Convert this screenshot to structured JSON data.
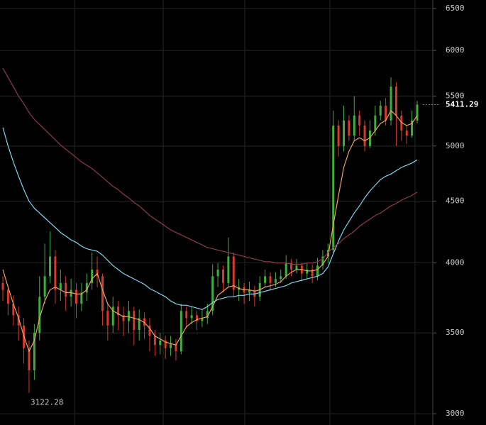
{
  "chart_data": {
    "type": "candlestick",
    "log_scale": true,
    "grid": true,
    "ylim": [
      2936,
      6607
    ],
    "yticks": [
      3000,
      3500,
      4000,
      4500,
      5000,
      5500,
      6000,
      6500
    ],
    "up_color": "#3fae3f",
    "down_color": "#d63a2f",
    "open": [
      3850,
      3800,
      3700,
      3620,
      3550,
      3400,
      3260,
      3500,
      3750,
      3900,
      4050,
      3800,
      3850,
      3750,
      3800,
      3700,
      3780,
      3850,
      3950,
      3900,
      3650,
      3550,
      3680,
      3620,
      3580,
      3650,
      3520,
      3600,
      3550,
      3480,
      3420,
      3450,
      3400,
      3430,
      3380,
      3650,
      3600,
      3620,
      3580,
      3600,
      3650,
      3900,
      3950,
      3850,
      4050,
      3800,
      3820,
      3780,
      3800,
      3750,
      3850,
      3900,
      3850,
      3880,
      3900,
      4000,
      3950,
      3980,
      3920,
      3950,
      3900,
      3980,
      4050,
      4100,
      5200,
      5000,
      5250,
      5100,
      5300,
      5200,
      5000,
      5150,
      5300,
      5400,
      5250,
      5600,
      5300,
      5150,
      5100,
      5250
    ],
    "high": [
      3900,
      3830,
      3760,
      3680,
      3600,
      3450,
      3560,
      3900,
      4150,
      4250,
      4100,
      3950,
      3900,
      3880,
      3850,
      3850,
      3920,
      4080,
      4050,
      3920,
      3700,
      3750,
      3720,
      3680,
      3720,
      3680,
      3660,
      3640,
      3600,
      3520,
      3500,
      3480,
      3480,
      3460,
      3700,
      3680,
      3680,
      3650,
      3660,
      3700,
      3990,
      4000,
      3980,
      4200,
      4080,
      3880,
      3850,
      3860,
      3830,
      3900,
      3950,
      3930,
      3930,
      3950,
      4060,
      4030,
      4030,
      4000,
      4000,
      3990,
      4040,
      4100,
      4150,
      5350,
      5250,
      5400,
      5300,
      5500,
      5350,
      5250,
      5250,
      5400,
      5450,
      5480,
      5700,
      5650,
      5350,
      5200,
      5350,
      5450
    ],
    "low": [
      3720,
      3620,
      3550,
      3450,
      3300,
      3122.28,
      3200,
      3450,
      3700,
      3850,
      3700,
      3720,
      3650,
      3680,
      3600,
      3650,
      3720,
      3800,
      3820,
      3550,
      3450,
      3500,
      3520,
      3480,
      3500,
      3420,
      3450,
      3460,
      3380,
      3350,
      3360,
      3330,
      3350,
      3320,
      3360,
      3540,
      3560,
      3520,
      3540,
      3560,
      3620,
      3820,
      3780,
      3820,
      3750,
      3720,
      3700,
      3720,
      3680,
      3720,
      3820,
      3800,
      3820,
      3850,
      3880,
      3900,
      3920,
      3860,
      3880,
      3850,
      3870,
      3950,
      4000,
      4080,
      4900,
      4950,
      5050,
      5050,
      5100,
      4950,
      4980,
      5100,
      5250,
      5200,
      5200,
      5000,
      5050,
      5020,
      5080,
      5220
    ],
    "close": [
      3800,
      3700,
      3620,
      3550,
      3400,
      3260,
      3500,
      3750,
      3900,
      4050,
      3800,
      3850,
      3750,
      3800,
      3700,
      3780,
      3850,
      3950,
      3900,
      3650,
      3550,
      3680,
      3620,
      3580,
      3650,
      3520,
      3600,
      3550,
      3480,
      3420,
      3450,
      3400,
      3430,
      3380,
      3650,
      3600,
      3620,
      3580,
      3600,
      3650,
      3900,
      3950,
      3850,
      4050,
      3800,
      3820,
      3780,
      3800,
      3750,
      3850,
      3900,
      3850,
      3880,
      3900,
      4000,
      3950,
      3980,
      3920,
      3950,
      3900,
      3980,
      4050,
      4100,
      5200,
      5000,
      5250,
      5100,
      5300,
      5200,
      5000,
      5150,
      5300,
      5400,
      5250,
      5600,
      5300,
      5150,
      5100,
      5250,
      5411.29
    ],
    "moving_averages": [
      {
        "color": "#e9a45a",
        "values": [
          3950,
          3820,
          3700,
          3600,
          3480,
          3380,
          3450,
          3600,
          3720,
          3800,
          3820,
          3800,
          3780,
          3780,
          3770,
          3770,
          3800,
          3880,
          3920,
          3800,
          3700,
          3650,
          3630,
          3610,
          3610,
          3600,
          3590,
          3570,
          3530,
          3480,
          3460,
          3440,
          3430,
          3420,
          3480,
          3540,
          3570,
          3590,
          3600,
          3610,
          3680,
          3760,
          3790,
          3820,
          3830,
          3810,
          3800,
          3800,
          3790,
          3800,
          3820,
          3830,
          3840,
          3860,
          3900,
          3930,
          3950,
          3950,
          3940,
          3940,
          3950,
          3990,
          4050,
          4300,
          4550,
          4800,
          4950,
          5050,
          5080,
          5050,
          5080,
          5150,
          5220,
          5250,
          5350,
          5300,
          5230,
          5200,
          5220,
          5300
        ]
      },
      {
        "color": "#7fd6f0",
        "values": [
          5180,
          5000,
          4850,
          4720,
          4600,
          4500,
          4440,
          4400,
          4360,
          4320,
          4280,
          4240,
          4210,
          4180,
          4160,
          4130,
          4110,
          4100,
          4090,
          4060,
          4020,
          3980,
          3950,
          3920,
          3900,
          3880,
          3860,
          3840,
          3810,
          3790,
          3770,
          3750,
          3720,
          3700,
          3690,
          3690,
          3680,
          3670,
          3660,
          3680,
          3710,
          3730,
          3740,
          3750,
          3750,
          3760,
          3760,
          3770,
          3770,
          3780,
          3790,
          3800,
          3810,
          3820,
          3830,
          3850,
          3860,
          3870,
          3880,
          3890,
          3900,
          3920,
          3970,
          4070,
          4170,
          4260,
          4330,
          4400,
          4460,
          4530,
          4590,
          4640,
          4690,
          4720,
          4740,
          4770,
          4800,
          4820,
          4840,
          4870
        ]
      },
      {
        "color": "#8e3b4c",
        "values": [
          5800,
          5700,
          5600,
          5500,
          5420,
          5330,
          5260,
          5210,
          5160,
          5110,
          5060,
          5010,
          4970,
          4930,
          4890,
          4850,
          4820,
          4790,
          4750,
          4710,
          4670,
          4630,
          4600,
          4560,
          4530,
          4490,
          4460,
          4420,
          4380,
          4350,
          4320,
          4290,
          4260,
          4240,
          4220,
          4200,
          4180,
          4160,
          4140,
          4120,
          4110,
          4100,
          4090,
          4080,
          4070,
          4060,
          4050,
          4040,
          4030,
          4020,
          4010,
          4010,
          4000,
          4000,
          4000,
          3990,
          3990,
          3990,
          4000,
          4000,
          4010,
          4030,
          4080,
          4120,
          4150,
          4190,
          4220,
          4250,
          4290,
          4320,
          4350,
          4380,
          4400,
          4430,
          4460,
          4480,
          4510,
          4530,
          4550,
          4580
        ]
      }
    ]
  }
}
